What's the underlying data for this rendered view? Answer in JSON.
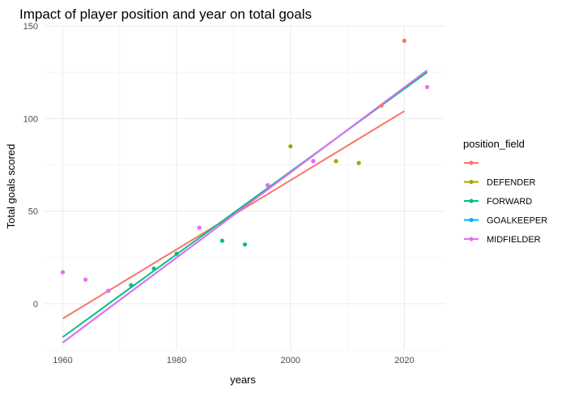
{
  "chart_data": {
    "type": "scatter",
    "title": "Impact of player position and year on total goals",
    "xlabel": "years",
    "ylabel": "Total goals scored",
    "xlim": [
      1956.8,
      2027.2
    ],
    "ylim": [
      -25,
      150
    ],
    "x_ticks": [
      1960,
      1980,
      2000,
      2020
    ],
    "y_ticks": [
      0,
      50,
      100,
      150
    ],
    "grid": true,
    "legend": {
      "title": "position_field",
      "placement": "right"
    },
    "series": [
      {
        "name": "",
        "color": "#F8766D",
        "points": [
          [
            2016,
            107
          ],
          [
            2020,
            142
          ]
        ],
        "trend": [
          [
            1960,
            -8
          ],
          [
            2020,
            104
          ]
        ]
      },
      {
        "name": "DEFENDER",
        "color": "#A3A500",
        "points": [
          [
            2000,
            85
          ],
          [
            2008,
            77
          ],
          [
            2012,
            76
          ]
        ],
        "trend": []
      },
      {
        "name": "FORWARD",
        "color": "#00BF7D",
        "points": [
          [
            1972,
            10
          ],
          [
            1976,
            19
          ],
          [
            1980,
            27
          ],
          [
            1988,
            34
          ],
          [
            1992,
            32
          ]
        ],
        "trend": [
          [
            1960,
            -18
          ],
          [
            2024,
            125
          ]
        ]
      },
      {
        "name": "GOALKEEPER",
        "color": "#00B0F6",
        "points": [
          [
            1996,
            64
          ],
          [
            2004,
            77
          ]
        ],
        "trend": [
          [
            1960,
            -21
          ],
          [
            2024,
            126
          ]
        ]
      },
      {
        "name": "MIDFIELDER",
        "color": "#E76BF3",
        "points": [
          [
            1960,
            17
          ],
          [
            1964,
            13
          ],
          [
            1968,
            7
          ],
          [
            1984,
            41
          ],
          [
            1996,
            64
          ],
          [
            2004,
            77
          ],
          [
            2024,
            117
          ]
        ],
        "trend": [
          [
            1960,
            -21
          ],
          [
            2024,
            126
          ]
        ]
      }
    ]
  }
}
